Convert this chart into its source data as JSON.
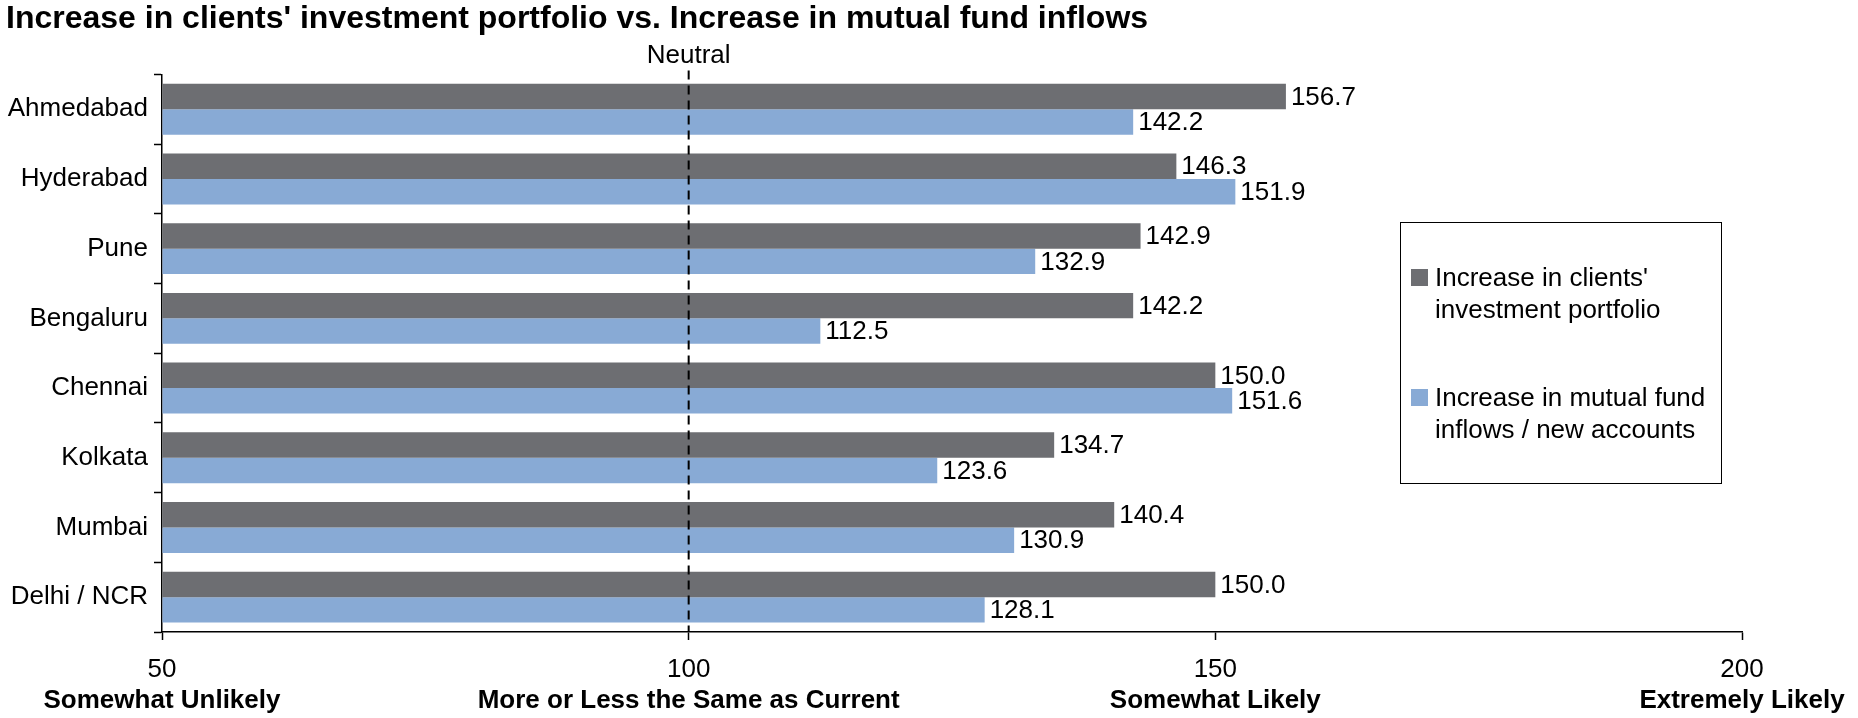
{
  "chart_data": {
    "type": "bar",
    "orientation": "horizontal",
    "title": "Increase in clients' investment portfolio vs. Increase in mutual fund inflows",
    "categories": [
      "Ahmedabad",
      "Hyderabad",
      "Pune",
      "Bengaluru",
      "Chennai",
      "Kolkata",
      "Mumbai",
      "Delhi / NCR"
    ],
    "series": [
      {
        "name": "Increase in clients' investment portfolio",
        "color": "#6d6e72",
        "values": [
          156.7,
          146.3,
          142.9,
          142.2,
          150.0,
          134.7,
          140.4,
          150.0
        ],
        "value_labels": [
          "156.7",
          "146.3",
          "142.9",
          "142.2",
          "150.0",
          "134.7",
          "140.4",
          "150.0"
        ]
      },
      {
        "name": "Increase in mutual fund inflows / new accounts",
        "color": "#88aad5",
        "values": [
          142.2,
          151.9,
          132.9,
          112.5,
          151.6,
          123.6,
          130.9,
          128.1
        ],
        "value_labels": [
          "142.2",
          "151.9",
          "132.9",
          "112.5",
          "151.6",
          "123.6",
          "130.9",
          "128.1"
        ]
      }
    ],
    "xlim": [
      50,
      200
    ],
    "xticks": [
      {
        "value": 50,
        "label": "50\nSomewhat Unlikely"
      },
      {
        "value": 100,
        "label": "100\nMore or Less the Same as Current"
      },
      {
        "value": 150,
        "label": "150\nSomewhat Likely"
      },
      {
        "value": 200,
        "label": "200\nExtremely Likely"
      }
    ],
    "ref_lines": [
      {
        "axis": "x",
        "value": 100,
        "label": "Neutral",
        "color": "#000000",
        "line_style": "dashed"
      }
    ],
    "grid": false,
    "legend": "right"
  }
}
